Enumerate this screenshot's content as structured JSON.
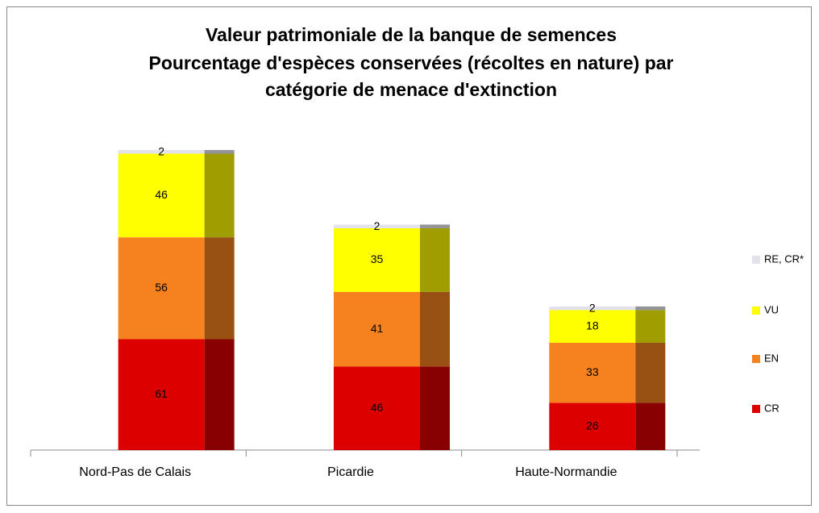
{
  "chart_data": {
    "type": "bar",
    "stacked": true,
    "title": [
      "Valeur patrimoniale de la banque de semences",
      "Pourcentage d'espèces conservées (récoltes en nature) par",
      "catégorie de menace d'extinction"
    ],
    "categories": [
      "Nord-Pas de Calais",
      "Picardie",
      "Haute-Normandie"
    ],
    "series": [
      {
        "name": "CR",
        "color": "#dd0000",
        "values": [
          61,
          46,
          26
        ]
      },
      {
        "name": "EN",
        "color": "#f5821f",
        "values": [
          56,
          41,
          33
        ]
      },
      {
        "name": "VU",
        "color": "#ffff00",
        "values": [
          46,
          35,
          18
        ]
      },
      {
        "name": "RE, CR*",
        "color": "#e2e2ec",
        "values": [
          2,
          2,
          2
        ]
      }
    ],
    "legend": "right"
  }
}
